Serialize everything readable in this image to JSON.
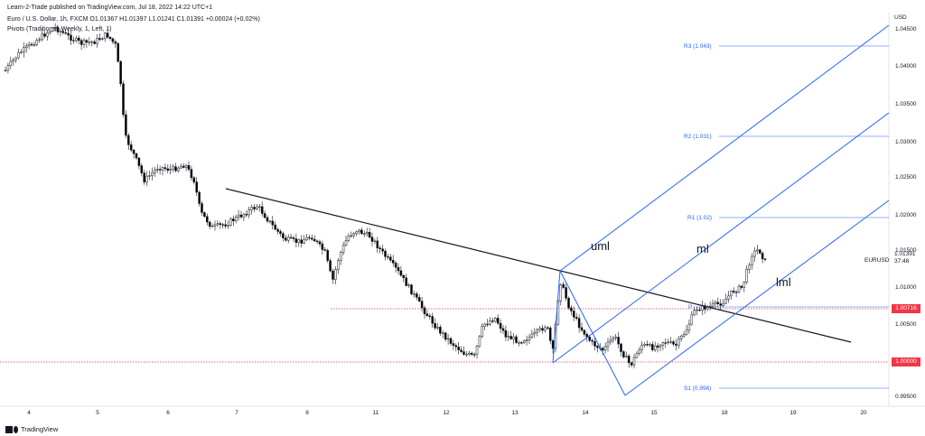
{
  "header": {
    "publisher": "Learn-2-Trade published on TradingView.com, Jul 18, 2022 14:22 UTC+1",
    "symbol_line": "Euro / U.S. Dollar, 1h, FXCM  O1.01367  H1.01397  L1.01241  C1.01391  +0.00024 (+0.02%)",
    "indicator_line": "Pivots (Traditional, Weekly, 1, Left, 1)"
  },
  "price_axis": {
    "unit": "USD",
    "ticks": [
      "1.04500",
      "1.04000",
      "1.03500",
      "1.03000",
      "1.02500",
      "1.02000",
      "1.01500",
      "1.01000",
      "1.00500",
      "0.99500"
    ]
  },
  "time_axis": {
    "ticks": [
      "4",
      "5",
      "6",
      "7",
      "8",
      "11",
      "12",
      "13",
      "14",
      "15",
      "18",
      "19",
      "20"
    ]
  },
  "symbol_label": {
    "name": "EURUSD",
    "price": "1.01391",
    "countdown": "37:48"
  },
  "price_tags": [
    {
      "value": "1.00716",
      "color": "#f23645"
    },
    {
      "value": "1.00000",
      "color": "#f23645"
    }
  ],
  "pivot_labels": [
    {
      "label": "R3 (1.043)",
      "value": 1.043
    },
    {
      "label": "R2 (1.031)",
      "value": 1.031
    },
    {
      "label": "R1 (1.02)",
      "value": 1.02
    },
    {
      "label": "P",
      "value": 1.007
    },
    {
      "label": "S1 (0.996)",
      "value": 0.996
    }
  ],
  "channel_labels": {
    "upper": "uml",
    "median": "ml",
    "lower": "lml"
  },
  "colors": {
    "up_candle": "#ffffff",
    "down_candle": "#000000",
    "pitchfork": "#2962ff",
    "pivot_line": "#2962ff",
    "level_line": "#f23645",
    "trendline": "#131722"
  },
  "footer": {
    "brand": "TradingView"
  }
}
